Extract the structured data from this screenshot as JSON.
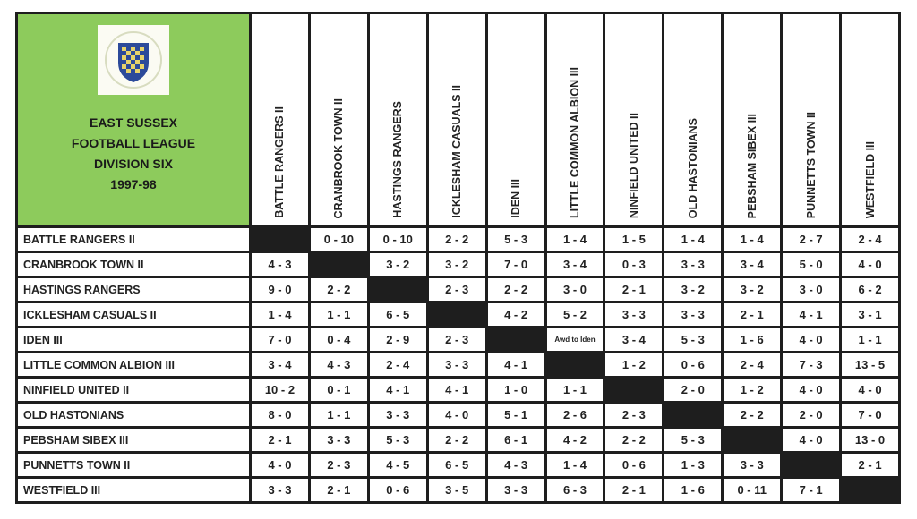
{
  "header": {
    "logo_text": "THE EAST SUSSEX FOOTBALL LEAGUE",
    "title_lines": [
      "EAST SUSSEX",
      "FOOTBALL LEAGUE",
      "DIVISION SIX",
      "1997-98"
    ]
  },
  "teams": [
    "BATTLE RANGERS II",
    "CRANBROOK TOWN II",
    "HASTINGS RANGERS",
    "ICKLESHAM CASUALS II",
    "IDEN III",
    "LITTLE COMMON ALBION III",
    "NINFIELD UNITED II",
    "OLD HASTONIANS",
    "PEBSHAM SIBEX III",
    "PUNNETTS TOWN II",
    "WESTFIELD III"
  ],
  "results": [
    [
      "",
      "0 - 10",
      "0 - 10",
      "2 - 2",
      "5 - 3",
      "1 - 4",
      "1 - 5",
      "1 - 4",
      "1 - 4",
      "2 - 7",
      "2 - 4"
    ],
    [
      "4 - 3",
      "",
      "3 - 2",
      "3 - 2",
      "7 - 0",
      "3 - 4",
      "0 - 3",
      "3 - 3",
      "3 - 4",
      "5 - 0",
      "4 - 0"
    ],
    [
      "9 - 0",
      "2 - 2",
      "",
      "2 - 3",
      "2 - 2",
      "3 - 0",
      "2 - 1",
      "3 - 2",
      "3 - 2",
      "3 - 0",
      "6 - 2"
    ],
    [
      "1 - 4",
      "1 - 1",
      "6 - 5",
      "",
      "4 - 2",
      "5 - 2",
      "3 - 3",
      "3 - 3",
      "2 - 1",
      "4 - 1",
      "3 - 1"
    ],
    [
      "7 - 0",
      "0 - 4",
      "2 - 9",
      "2 - 3",
      "",
      "Awd to Iden",
      "3 - 4",
      "5 - 3",
      "1 - 6",
      "4 - 0",
      "1 - 1"
    ],
    [
      "3 - 4",
      "4 - 3",
      "2 - 4",
      "3 - 3",
      "4 - 1",
      "",
      "1 - 2",
      "0 - 6",
      "2 - 4",
      "7 - 3",
      "13 - 5"
    ],
    [
      "10 - 2",
      "0 - 1",
      "4 - 1",
      "4 - 1",
      "1 - 0",
      "1 - 1",
      "",
      "2 - 0",
      "1 - 2",
      "4 - 0",
      "4 - 0"
    ],
    [
      "8 - 0",
      "1 - 1",
      "3 - 3",
      "4 - 0",
      "5 - 1",
      "2 - 6",
      "2 - 3",
      "",
      "2 - 2",
      "2 - 0",
      "7 - 0"
    ],
    [
      "2 - 1",
      "3 - 3",
      "5 - 3",
      "2 - 2",
      "6 - 1",
      "4 - 2",
      "2 - 2",
      "5 - 3",
      "",
      "4 - 0",
      "13 - 0"
    ],
    [
      "4 - 0",
      "2 - 3",
      "4 - 5",
      "6 - 5",
      "4 - 3",
      "1 - 4",
      "0 - 6",
      "1 - 3",
      "3 - 3",
      "",
      "2 - 1"
    ],
    [
      "3 - 3",
      "2 - 1",
      "0 - 6",
      "3 - 5",
      "3 - 3",
      "6 - 3",
      "2 - 1",
      "1 - 6",
      "0 - 11",
      "7 - 1",
      ""
    ]
  ],
  "colors": {
    "header_green": "#8dcb5c",
    "grid_black": "#1e1e1e"
  }
}
